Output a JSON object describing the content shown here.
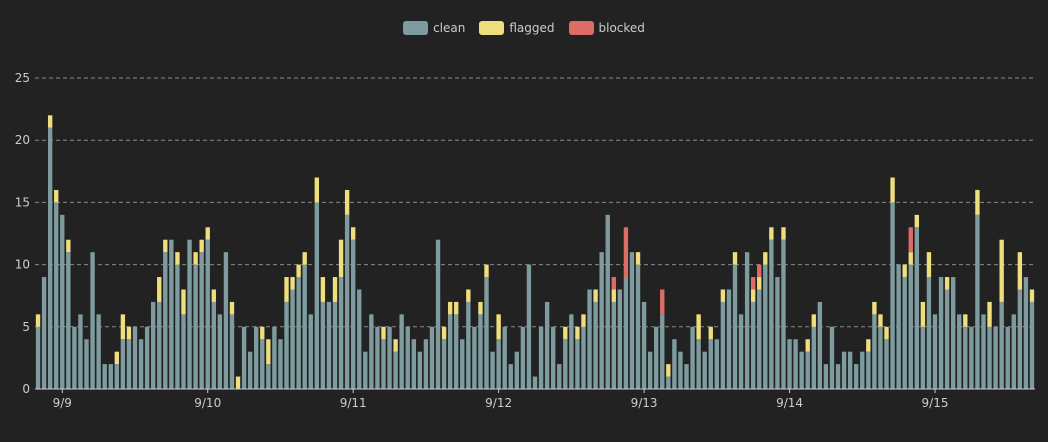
{
  "chart_data": {
    "type": "bar",
    "stacked": true,
    "title": "",
    "xlabel": "",
    "ylabel": "",
    "ylim": [
      0,
      25
    ],
    "yticks": [
      0,
      5,
      10,
      15,
      20,
      25
    ],
    "xticks": [
      {
        "label": "9/9",
        "index": 4
      },
      {
        "label": "9/10",
        "index": 28
      },
      {
        "label": "9/11",
        "index": 52
      },
      {
        "label": "9/12",
        "index": 76
      },
      {
        "label": "9/13",
        "index": 100
      },
      {
        "label": "9/14",
        "index": 124
      },
      {
        "label": "9/15",
        "index": 148
      }
    ],
    "grid": "horizontal dashed",
    "legend_position": "top-center",
    "colors": {
      "clean": "#7e9c9f",
      "flagged": "#efde7c",
      "blocked": "#dd6b66"
    },
    "series": [
      {
        "name": "clean",
        "values": [
          5,
          9,
          21,
          15,
          14,
          11,
          5,
          6,
          4,
          11,
          6,
          2,
          2,
          2,
          4,
          4,
          5,
          4,
          5,
          7,
          7,
          11,
          12,
          10,
          6,
          12,
          10,
          11,
          12,
          7,
          6,
          11,
          6,
          0,
          5,
          3,
          5,
          4,
          2,
          5,
          4,
          7,
          8,
          9,
          10,
          6,
          15,
          7,
          7,
          7,
          9,
          14,
          12,
          8,
          3,
          6,
          5,
          4,
          5,
          3,
          6,
          5,
          4,
          3,
          4,
          5,
          12,
          4,
          6,
          6,
          4,
          7,
          5,
          6,
          9,
          3,
          4,
          5,
          2,
          3,
          5,
          10,
          1,
          5,
          7,
          5,
          2,
          4,
          6,
          4,
          5,
          8,
          7,
          11,
          14,
          7,
          8,
          9,
          11,
          10,
          7,
          3,
          5,
          6,
          1,
          4,
          3,
          2,
          5,
          4,
          3,
          4,
          4,
          7,
          8,
          10,
          6,
          11,
          7,
          8,
          10,
          12,
          9,
          12,
          4,
          4,
          3,
          3,
          5,
          7,
          2,
          5,
          2,
          3,
          3,
          2,
          3,
          3,
          6,
          5,
          4,
          15,
          10,
          9,
          10,
          13,
          5,
          9,
          6,
          9,
          8,
          9,
          6,
          5,
          5,
          14,
          6,
          5,
          5,
          7,
          5,
          6,
          8,
          9,
          7
        ]
      },
      {
        "name": "flagged",
        "values": [
          1,
          0,
          1,
          1,
          0,
          1,
          0,
          0,
          0,
          0,
          0,
          0,
          0,
          1,
          2,
          1,
          0,
          0,
          0,
          0,
          2,
          1,
          0,
          1,
          2,
          0,
          1,
          1,
          1,
          1,
          0,
          0,
          1,
          1,
          0,
          0,
          0,
          1,
          2,
          0,
          0,
          2,
          1,
          1,
          1,
          0,
          2,
          2,
          0,
          2,
          3,
          2,
          1,
          0,
          0,
          0,
          0,
          1,
          0,
          1,
          0,
          0,
          0,
          0,
          0,
          0,
          0,
          1,
          1,
          1,
          0,
          1,
          0,
          1,
          1,
          0,
          2,
          0,
          0,
          0,
          0,
          0,
          0,
          0,
          0,
          0,
          0,
          1,
          0,
          1,
          1,
          0,
          1,
          0,
          0,
          1,
          0,
          0,
          0,
          1,
          0,
          0,
          0,
          0,
          1,
          0,
          0,
          0,
          0,
          2,
          0,
          1,
          0,
          1,
          0,
          1,
          0,
          0,
          1,
          1,
          1,
          1,
          0,
          1,
          0,
          0,
          0,
          1,
          1,
          0,
          0,
          0,
          0,
          0,
          0,
          0,
          0,
          1,
          1,
          1,
          1,
          2,
          0,
          1,
          1,
          1,
          2,
          2,
          0,
          0,
          1,
          0,
          0,
          1,
          0,
          2,
          0,
          2,
          0,
          5,
          0,
          0,
          3,
          0,
          1
        ]
      },
      {
        "name": "blocked",
        "values": [
          0,
          0,
          0,
          0,
          0,
          0,
          0,
          0,
          0,
          0,
          0,
          0,
          0,
          0,
          0,
          0,
          0,
          0,
          0,
          0,
          0,
          0,
          0,
          0,
          0,
          0,
          0,
          0,
          0,
          0,
          0,
          0,
          0,
          0,
          0,
          0,
          0,
          0,
          0,
          0,
          0,
          0,
          0,
          0,
          0,
          0,
          0,
          0,
          0,
          0,
          0,
          0,
          0,
          0,
          0,
          0,
          0,
          0,
          0,
          0,
          0,
          0,
          0,
          0,
          0,
          0,
          0,
          0,
          0,
          0,
          0,
          0,
          0,
          0,
          0,
          0,
          0,
          0,
          0,
          0,
          0,
          0,
          0,
          0,
          0,
          0,
          0,
          0,
          0,
          0,
          0,
          0,
          0,
          0,
          0,
          1,
          0,
          4,
          0,
          0,
          0,
          0,
          0,
          2,
          0,
          0,
          0,
          0,
          0,
          0,
          0,
          0,
          0,
          0,
          0,
          0,
          0,
          0,
          1,
          1,
          0,
          0,
          0,
          0,
          0,
          0,
          0,
          0,
          0,
          0,
          0,
          0,
          0,
          0,
          0,
          0,
          0,
          0,
          0,
          0,
          0,
          0,
          0,
          0,
          2,
          0,
          0,
          0,
          0,
          0,
          0,
          0,
          0,
          0,
          0,
          0,
          0,
          0,
          0,
          0,
          0,
          0,
          0,
          0,
          0
        ]
      }
    ]
  }
}
